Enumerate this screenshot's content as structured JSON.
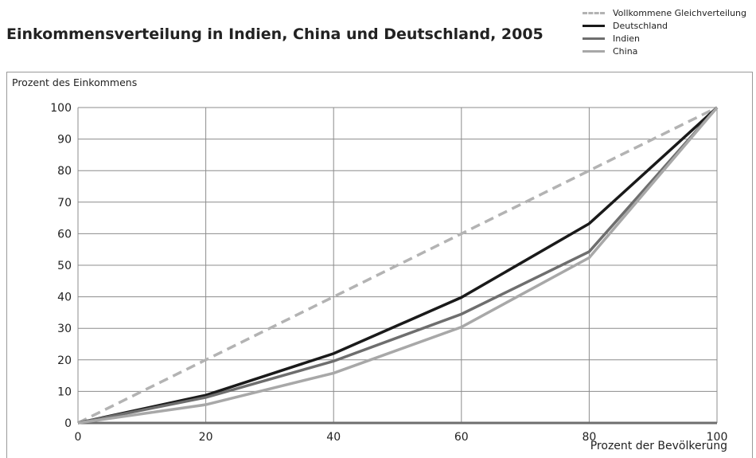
{
  "chart_data": {
    "type": "line",
    "title": "Einkommensverteilung in Indien, China und Deutschland, 2005",
    "xlabel": "Prozent der Bevölkerung",
    "ylabel": "Prozent des Einkommens",
    "xlim": [
      0,
      100
    ],
    "ylim": [
      0,
      100
    ],
    "xticks": [
      0,
      20,
      40,
      60,
      80,
      100
    ],
    "yticks": [
      0,
      10,
      20,
      30,
      40,
      50,
      60,
      70,
      80,
      90,
      100
    ],
    "grid": true,
    "legend_position": "top-right",
    "x": [
      0,
      20,
      40,
      60,
      80,
      100
    ],
    "series": [
      {
        "name": "Vollkommene Gleichverteilung",
        "values": [
          0,
          20,
          40,
          60,
          80,
          100
        ],
        "color": "#b3b3b3",
        "style": "dashed"
      },
      {
        "name": "Deutschland",
        "values": [
          0,
          8.8,
          22,
          39.8,
          63.2,
          100
        ],
        "color": "#1a1a1a",
        "style": "solid"
      },
      {
        "name": "Indien",
        "values": [
          0,
          8.1,
          19.6,
          34.5,
          54.3,
          100
        ],
        "color": "#6e6e6e",
        "style": "solid"
      },
      {
        "name": "China",
        "values": [
          0,
          5.8,
          15.8,
          30.4,
          52.4,
          100
        ],
        "color": "#a8a8a8",
        "style": "solid"
      }
    ]
  }
}
